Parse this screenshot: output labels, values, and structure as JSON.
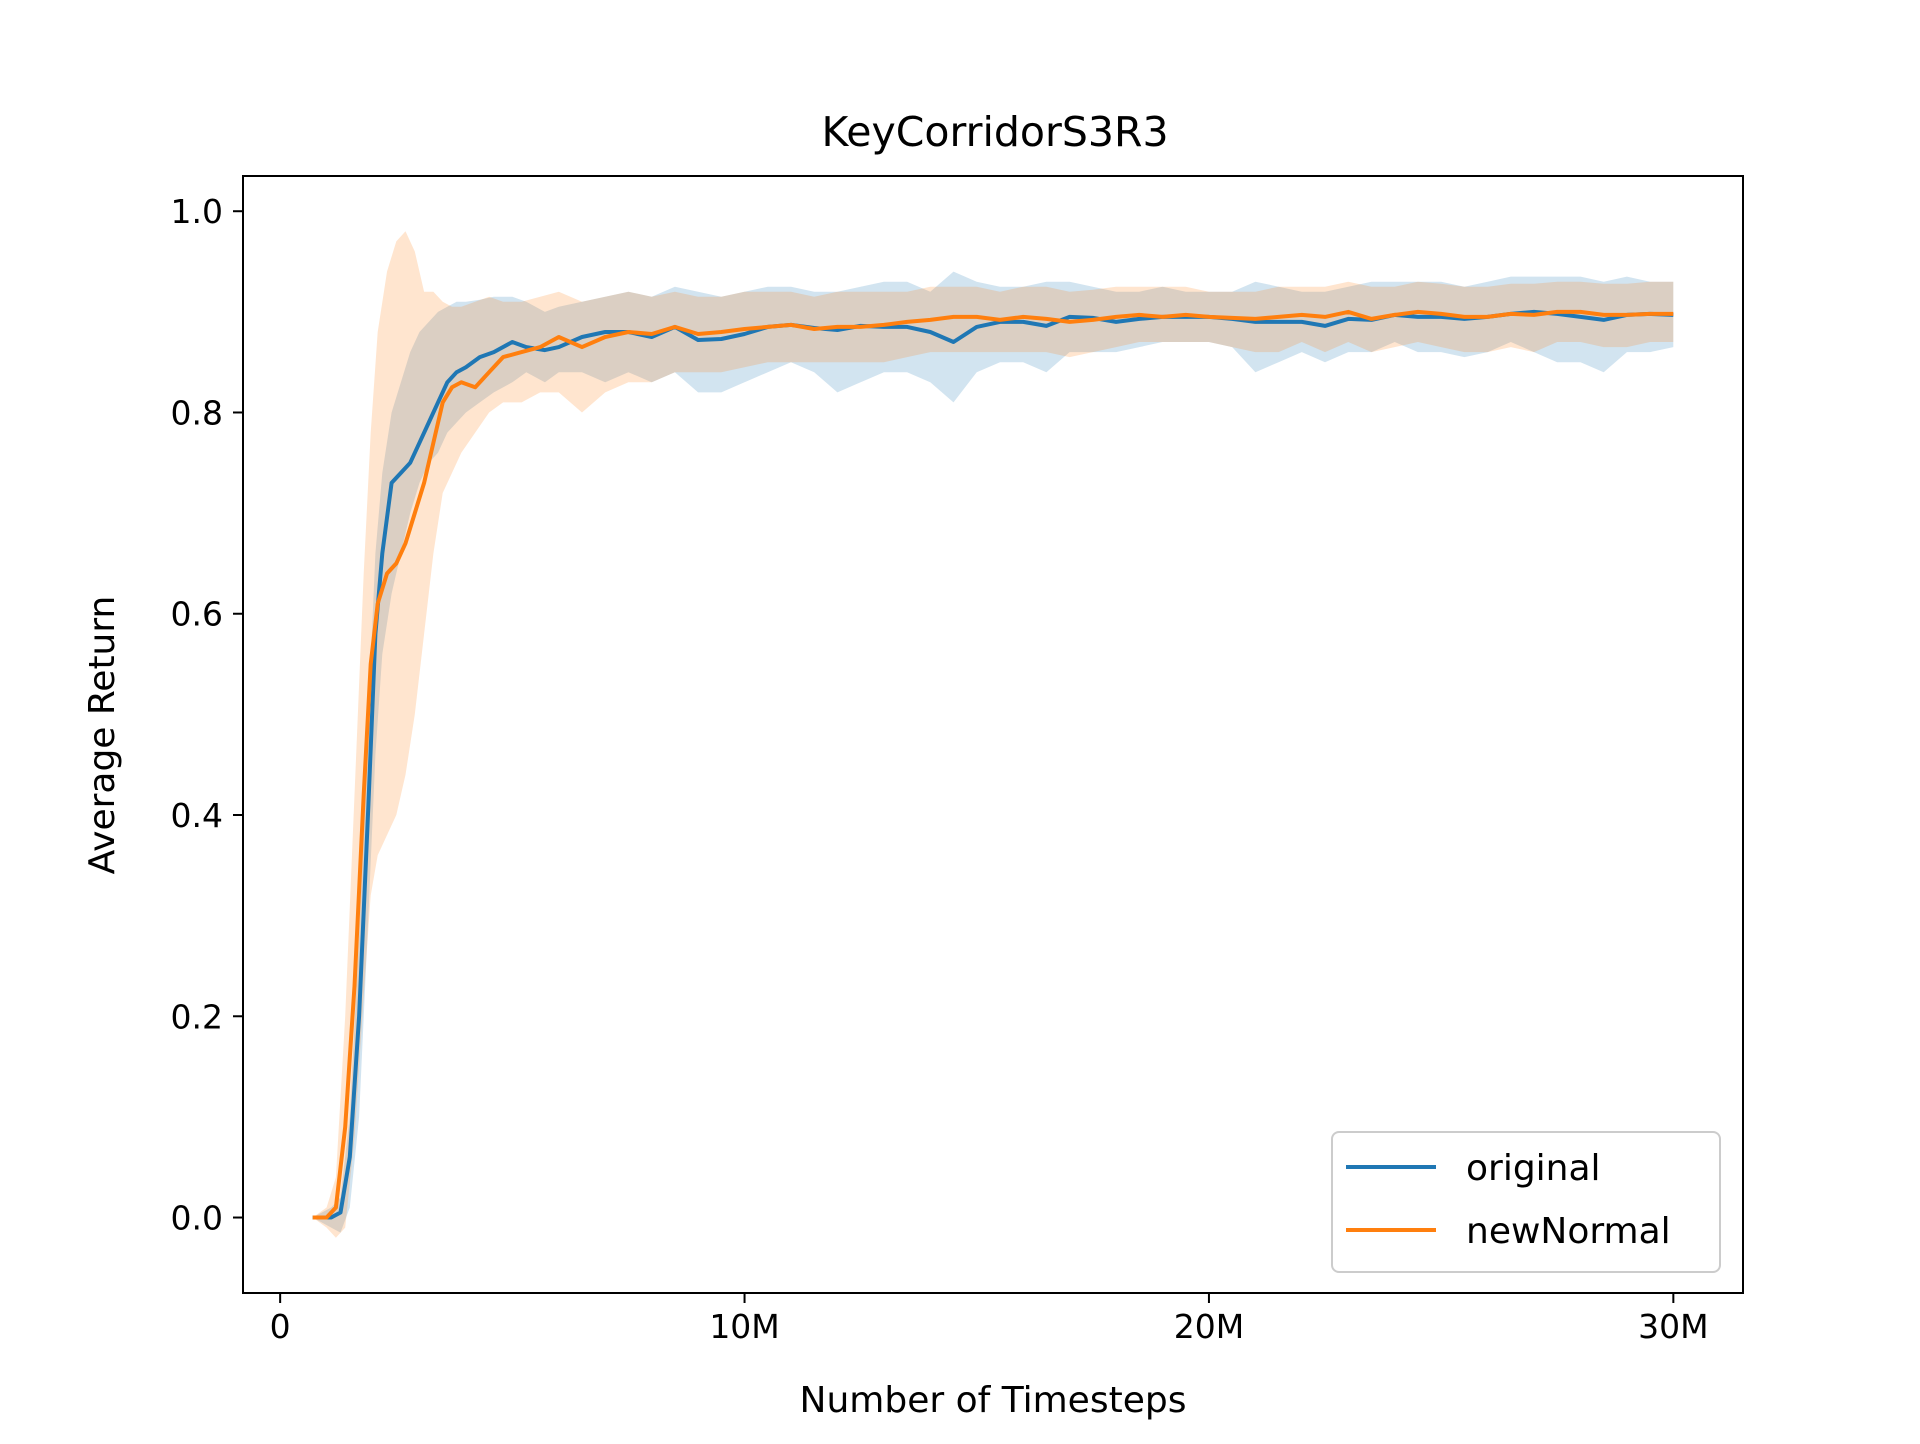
{
  "chart_data": {
    "type": "line",
    "title": "KeyCorridorS3R3",
    "xlabel": "Number of Timesteps",
    "ylabel": "Average Return",
    "xlim": [
      -0.8,
      31.5
    ],
    "ylim": [
      -0.075,
      1.035
    ],
    "xticks": [
      {
        "value": 0,
        "label": "0"
      },
      {
        "value": 10,
        "label": "10M"
      },
      {
        "value": 20,
        "label": "20M"
      },
      {
        "value": 30,
        "label": "30M"
      }
    ],
    "yticks": [
      {
        "value": 0.0,
        "label": "0.0"
      },
      {
        "value": 0.2,
        "label": "0.2"
      },
      {
        "value": 0.4,
        "label": "0.4"
      },
      {
        "value": 0.6,
        "label": "0.6"
      },
      {
        "value": 0.8,
        "label": "0.8"
      },
      {
        "value": 1.0,
        "label": "1.0"
      }
    ],
    "grid": false,
    "legend_position": "lower right",
    "series": [
      {
        "name": "original",
        "color": "#1f77b4",
        "x": [
          0.7,
          1.1,
          1.3,
          1.5,
          1.7,
          1.9,
          2.05,
          2.2,
          2.4,
          2.6,
          2.8,
          3.0,
          3.2,
          3.4,
          3.6,
          3.8,
          4.0,
          4.3,
          4.6,
          5.0,
          5.3,
          5.7,
          6.0,
          6.5,
          7.0,
          7.5,
          8.0,
          8.5,
          9.0,
          9.5,
          10.0,
          10.5,
          11.0,
          11.5,
          12.0,
          12.5,
          13.0,
          13.5,
          14.0,
          14.5,
          15.0,
          15.5,
          16.0,
          16.5,
          17.0,
          17.5,
          18.0,
          18.5,
          19.0,
          19.5,
          20.0,
          20.5,
          21.0,
          21.5,
          22.0,
          22.5,
          23.0,
          23.5,
          24.0,
          24.5,
          25.0,
          25.5,
          26.0,
          26.5,
          27.0,
          27.5,
          28.0,
          28.5,
          29.0,
          29.5,
          30.0
        ],
        "y": [
          0.0,
          0.0,
          0.005,
          0.06,
          0.2,
          0.41,
          0.58,
          0.66,
          0.73,
          0.74,
          0.75,
          0.77,
          0.79,
          0.81,
          0.83,
          0.84,
          0.845,
          0.855,
          0.86,
          0.87,
          0.865,
          0.862,
          0.865,
          0.875,
          0.88,
          0.88,
          0.875,
          0.885,
          0.872,
          0.873,
          0.878,
          0.885,
          0.887,
          0.884,
          0.882,
          0.886,
          0.885,
          0.885,
          0.88,
          0.87,
          0.885,
          0.89,
          0.89,
          0.886,
          0.895,
          0.894,
          0.89,
          0.893,
          0.895,
          0.895,
          0.895,
          0.893,
          0.89,
          0.89,
          0.89,
          0.886,
          0.893,
          0.892,
          0.897,
          0.895,
          0.895,
          0.893,
          0.895,
          0.898,
          0.9,
          0.898,
          0.895,
          0.892,
          0.897,
          0.898,
          0.897
        ],
        "band_low": [
          0.0,
          -0.01,
          -0.015,
          0.01,
          0.1,
          0.3,
          0.46,
          0.56,
          0.62,
          0.66,
          0.7,
          0.73,
          0.75,
          0.76,
          0.78,
          0.79,
          0.8,
          0.81,
          0.82,
          0.83,
          0.84,
          0.83,
          0.84,
          0.84,
          0.83,
          0.84,
          0.83,
          0.84,
          0.82,
          0.82,
          0.83,
          0.84,
          0.85,
          0.84,
          0.82,
          0.83,
          0.84,
          0.84,
          0.83,
          0.81,
          0.84,
          0.85,
          0.85,
          0.84,
          0.86,
          0.86,
          0.86,
          0.865,
          0.87,
          0.87,
          0.87,
          0.865,
          0.84,
          0.85,
          0.86,
          0.85,
          0.86,
          0.86,
          0.87,
          0.86,
          0.86,
          0.855,
          0.86,
          0.87,
          0.86,
          0.85,
          0.85,
          0.84,
          0.86,
          0.86,
          0.865
        ],
        "band_high": [
          0.0,
          0.01,
          0.02,
          0.1,
          0.28,
          0.5,
          0.66,
          0.74,
          0.8,
          0.83,
          0.86,
          0.88,
          0.89,
          0.9,
          0.905,
          0.91,
          0.91,
          0.912,
          0.915,
          0.915,
          0.91,
          0.9,
          0.905,
          0.91,
          0.915,
          0.92,
          0.915,
          0.925,
          0.92,
          0.915,
          0.92,
          0.925,
          0.925,
          0.92,
          0.92,
          0.925,
          0.93,
          0.93,
          0.92,
          0.94,
          0.93,
          0.925,
          0.925,
          0.93,
          0.93,
          0.925,
          0.92,
          0.92,
          0.925,
          0.92,
          0.92,
          0.92,
          0.93,
          0.925,
          0.92,
          0.92,
          0.925,
          0.93,
          0.93,
          0.93,
          0.93,
          0.925,
          0.93,
          0.935,
          0.935,
          0.935,
          0.935,
          0.93,
          0.935,
          0.93,
          0.93
        ]
      },
      {
        "name": "newNormal",
        "color": "#ff7f0e",
        "x": [
          0.7,
          1.0,
          1.2,
          1.4,
          1.6,
          1.8,
          1.95,
          2.1,
          2.3,
          2.5,
          2.7,
          2.9,
          3.1,
          3.3,
          3.5,
          3.7,
          3.9,
          4.2,
          4.5,
          4.8,
          5.2,
          5.6,
          6.0,
          6.5,
          7.0,
          7.5,
          8.0,
          8.5,
          9.0,
          9.5,
          10.0,
          10.5,
          11.0,
          11.5,
          12.0,
          12.5,
          13.0,
          13.5,
          14.0,
          14.5,
          15.0,
          15.5,
          16.0,
          16.5,
          17.0,
          17.5,
          18.0,
          18.5,
          19.0,
          19.5,
          20.0,
          20.5,
          21.0,
          21.5,
          22.0,
          22.5,
          23.0,
          23.5,
          24.0,
          24.5,
          25.0,
          25.5,
          26.0,
          26.5,
          27.0,
          27.5,
          28.0,
          28.5,
          29.0,
          29.5,
          30.0
        ],
        "y": [
          0.0,
          0.0,
          0.01,
          0.09,
          0.23,
          0.42,
          0.55,
          0.61,
          0.64,
          0.65,
          0.67,
          0.7,
          0.73,
          0.77,
          0.81,
          0.825,
          0.83,
          0.825,
          0.84,
          0.855,
          0.86,
          0.865,
          0.875,
          0.865,
          0.875,
          0.88,
          0.878,
          0.885,
          0.878,
          0.88,
          0.883,
          0.885,
          0.887,
          0.883,
          0.885,
          0.885,
          0.887,
          0.89,
          0.892,
          0.895,
          0.895,
          0.892,
          0.895,
          0.893,
          0.89,
          0.892,
          0.895,
          0.897,
          0.895,
          0.897,
          0.895,
          0.894,
          0.893,
          0.895,
          0.897,
          0.895,
          0.9,
          0.893,
          0.897,
          0.9,
          0.898,
          0.895,
          0.895,
          0.898,
          0.897,
          0.9,
          0.9,
          0.897,
          0.897,
          0.898,
          0.898
        ],
        "band_low": [
          0.0,
          -0.01,
          -0.02,
          -0.01,
          0.08,
          0.22,
          0.32,
          0.36,
          0.38,
          0.4,
          0.44,
          0.5,
          0.58,
          0.66,
          0.72,
          0.74,
          0.76,
          0.78,
          0.8,
          0.81,
          0.81,
          0.82,
          0.82,
          0.8,
          0.82,
          0.83,
          0.83,
          0.84,
          0.84,
          0.84,
          0.845,
          0.85,
          0.85,
          0.85,
          0.85,
          0.85,
          0.85,
          0.855,
          0.86,
          0.86,
          0.86,
          0.86,
          0.86,
          0.86,
          0.855,
          0.86,
          0.865,
          0.87,
          0.87,
          0.87,
          0.87,
          0.865,
          0.86,
          0.86,
          0.87,
          0.86,
          0.87,
          0.86,
          0.865,
          0.87,
          0.865,
          0.86,
          0.86,
          0.865,
          0.86,
          0.87,
          0.87,
          0.865,
          0.865,
          0.87,
          0.87
        ],
        "band_high": [
          0.0,
          0.01,
          0.04,
          0.2,
          0.42,
          0.64,
          0.78,
          0.88,
          0.94,
          0.97,
          0.98,
          0.96,
          0.92,
          0.92,
          0.91,
          0.905,
          0.905,
          0.91,
          0.915,
          0.91,
          0.91,
          0.915,
          0.92,
          0.91,
          0.915,
          0.92,
          0.915,
          0.92,
          0.915,
          0.915,
          0.92,
          0.92,
          0.92,
          0.915,
          0.92,
          0.92,
          0.92,
          0.92,
          0.925,
          0.925,
          0.925,
          0.92,
          0.925,
          0.925,
          0.92,
          0.922,
          0.925,
          0.925,
          0.925,
          0.925,
          0.92,
          0.92,
          0.92,
          0.925,
          0.925,
          0.925,
          0.93,
          0.925,
          0.925,
          0.93,
          0.928,
          0.925,
          0.925,
          0.928,
          0.928,
          0.93,
          0.93,
          0.928,
          0.928,
          0.93,
          0.93
        ]
      }
    ]
  }
}
